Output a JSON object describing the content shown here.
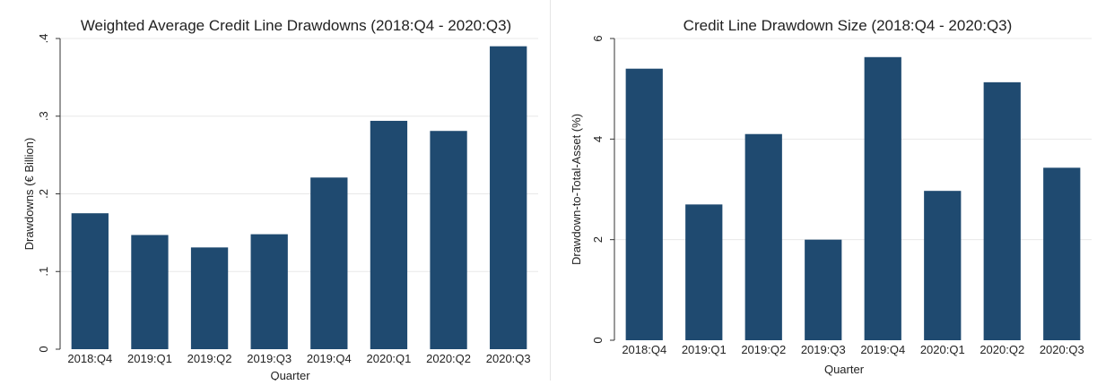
{
  "chart_data": [
    {
      "type": "bar",
      "title": "Weighted Average Credit Line Drawdowns (2018:Q4 - 2020:Q3)",
      "xlabel": "Quarter",
      "ylabel": "Drawdowns (€ Billion)",
      "categories": [
        "2018:Q4",
        "2019:Q1",
        "2019:Q2",
        "2019:Q3",
        "2019:Q4",
        "2020:Q1",
        "2020:Q2",
        "2020:Q3"
      ],
      "values": [
        0.175,
        0.147,
        0.131,
        0.148,
        0.221,
        0.294,
        0.281,
        0.39
      ],
      "ylim": [
        0,
        0.4
      ],
      "yticks": [
        0,
        0.1,
        0.2,
        0.3,
        0.4
      ],
      "ytick_labels": [
        "0",
        ".1",
        ".2",
        ".3",
        ".4"
      ],
      "grid": true,
      "bar_color": "#1f4a70"
    },
    {
      "type": "bar",
      "title": "Credit Line Drawdown Size (2018:Q4 - 2020:Q3)",
      "xlabel": "Quarter",
      "ylabel": "Drawdown-to-Total-Asset (%)",
      "categories": [
        "2018:Q4",
        "2019:Q1",
        "2019:Q2",
        "2019:Q3",
        "2019:Q4",
        "2020:Q1",
        "2020:Q2",
        "2020:Q3"
      ],
      "values": [
        5.4,
        2.7,
        4.1,
        2.0,
        5.63,
        2.97,
        5.13,
        3.43
      ],
      "ylim": [
        0,
        6
      ],
      "yticks": [
        0,
        2,
        4,
        6
      ],
      "ytick_labels": [
        "0",
        "2",
        "4",
        "6"
      ],
      "grid": true,
      "bar_color": "#1f4a70"
    }
  ]
}
